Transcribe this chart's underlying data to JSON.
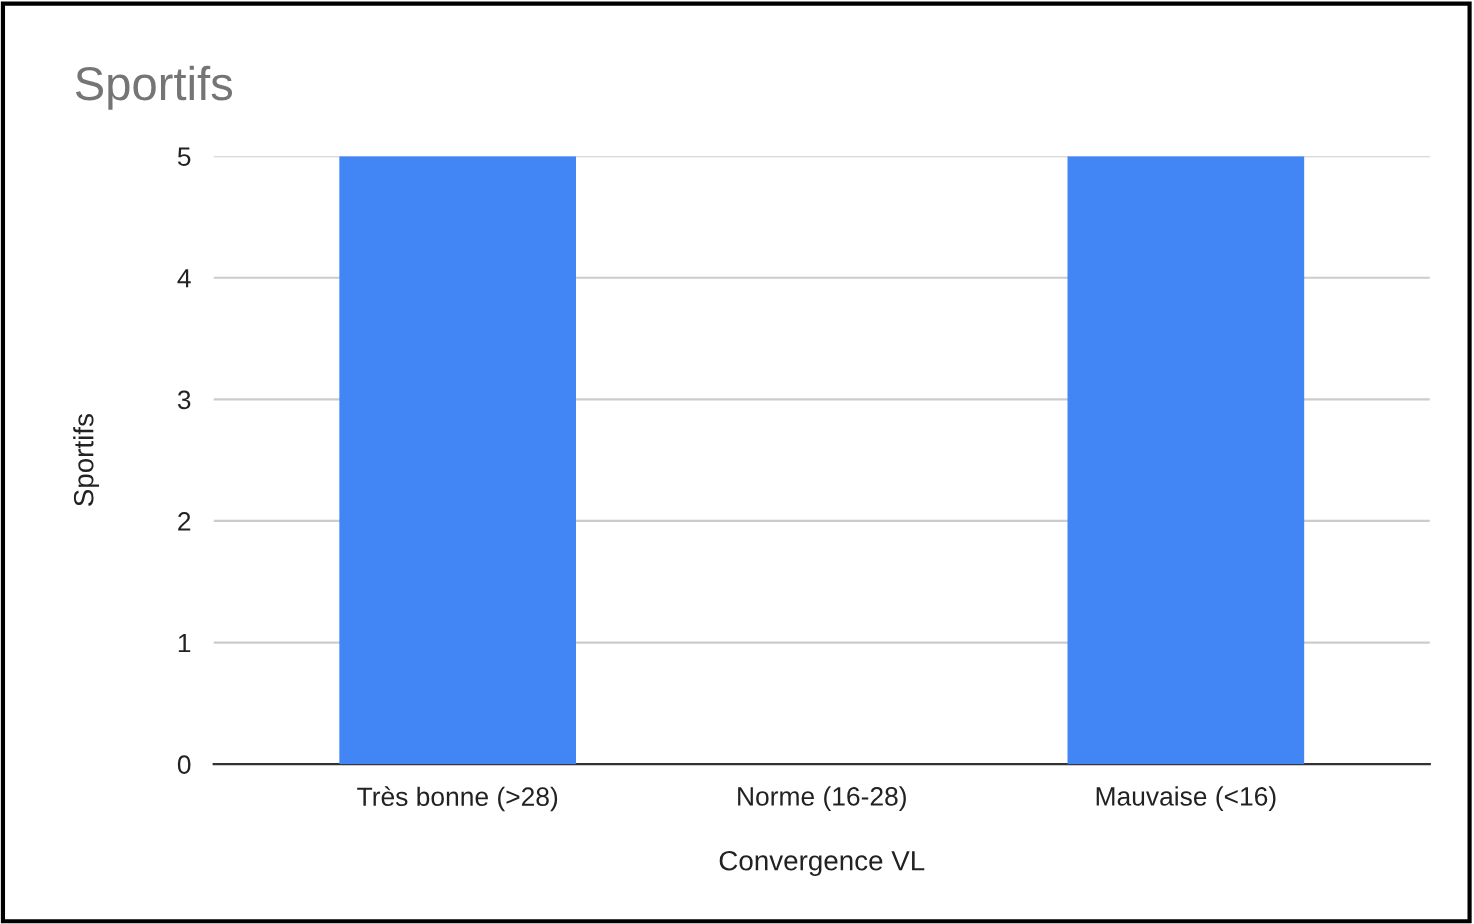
{
  "chart_data": {
    "type": "bar",
    "title": "Sportifs",
    "xlabel": "Convergence VL",
    "ylabel": "Sportifs",
    "categories": [
      "Très bonne (>28)",
      "Norme (16-28)",
      "Mauvaise (<16)"
    ],
    "values": [
      5,
      0,
      5
    ],
    "color": "#4285f4",
    "ylim": [
      0,
      5
    ],
    "yticks": [
      0,
      1,
      2,
      3,
      4,
      5
    ],
    "grid": "y",
    "legend": false
  }
}
